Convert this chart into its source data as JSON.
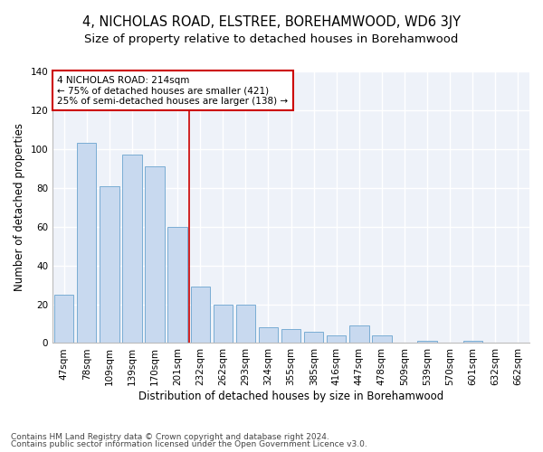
{
  "title1": "4, NICHOLAS ROAD, ELSTREE, BOREHAMWOOD, WD6 3JY",
  "title2": "Size of property relative to detached houses in Borehamwood",
  "xlabel": "Distribution of detached houses by size in Borehamwood",
  "ylabel": "Number of detached properties",
  "categories": [
    "47sqm",
    "78sqm",
    "109sqm",
    "139sqm",
    "170sqm",
    "201sqm",
    "232sqm",
    "262sqm",
    "293sqm",
    "324sqm",
    "355sqm",
    "385sqm",
    "416sqm",
    "447sqm",
    "478sqm",
    "509sqm",
    "539sqm",
    "570sqm",
    "601sqm",
    "632sqm",
    "662sqm"
  ],
  "values": [
    25,
    103,
    81,
    97,
    91,
    60,
    29,
    20,
    20,
    8,
    7,
    6,
    4,
    9,
    4,
    0,
    1,
    0,
    1,
    0,
    0
  ],
  "bar_color": "#c8d9ef",
  "bar_edge_color": "#7aadd4",
  "highlight_bar_index": 5,
  "vline_color": "#cc0000",
  "annotation_text": "4 NICHOLAS ROAD: 214sqm\n← 75% of detached houses are smaller (421)\n25% of semi-detached houses are larger (138) →",
  "annotation_box_color": "white",
  "annotation_box_edgecolor": "#cc0000",
  "ylim": [
    0,
    140
  ],
  "yticks": [
    0,
    20,
    40,
    60,
    80,
    100,
    120,
    140
  ],
  "footer1": "Contains HM Land Registry data © Crown copyright and database right 2024.",
  "footer2": "Contains public sector information licensed under the Open Government Licence v3.0.",
  "bg_color": "#eef2f9",
  "grid_color": "#ffffff",
  "title_fontsize": 10.5,
  "subtitle_fontsize": 9.5,
  "axis_label_fontsize": 8.5,
  "tick_fontsize": 7.5,
  "annotation_fontsize": 7.5,
  "footer_fontsize": 6.5
}
